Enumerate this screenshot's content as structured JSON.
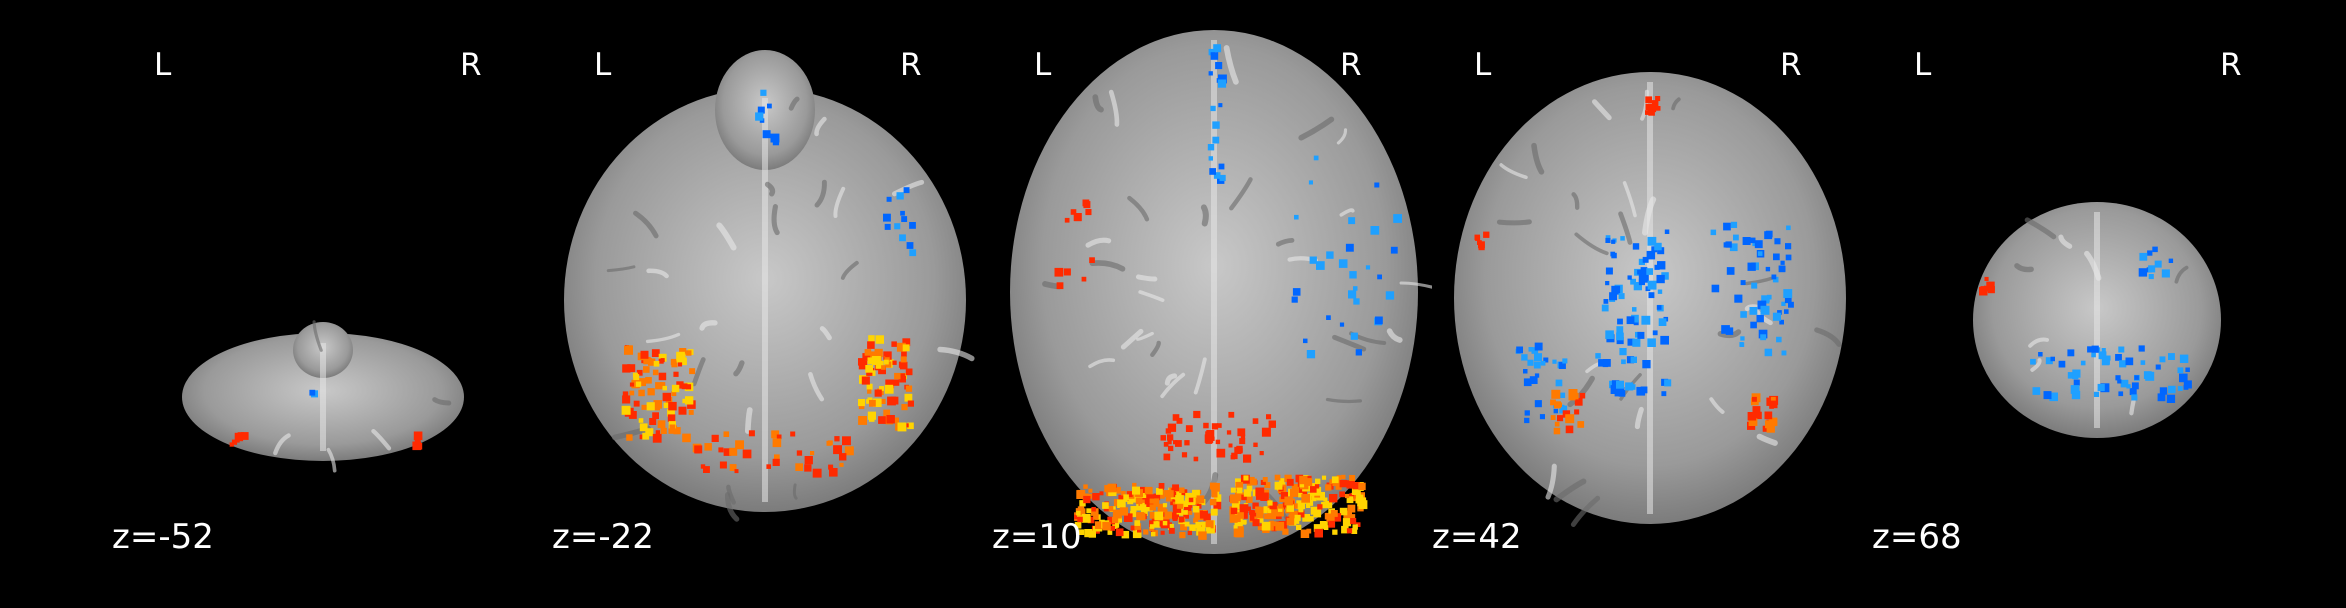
{
  "viewer": {
    "background": "#000000",
    "orientation": {
      "left_label": "L",
      "right_label": "R"
    },
    "brain_template_color": "#9a9a9a",
    "activation_positive_colors": [
      "#ff2a00",
      "#ff7a00",
      "#ffd400"
    ],
    "activation_negative_colors": [
      "#0066ff",
      "#1fa0ff"
    ],
    "slices": [
      {
        "id": "s1",
        "label": "z=-52"
      },
      {
        "id": "s2",
        "label": "z=-22"
      },
      {
        "id": "s3",
        "label": "z=10"
      },
      {
        "id": "s4",
        "label": "z=42"
      },
      {
        "id": "s5",
        "label": "z=68"
      }
    ]
  }
}
